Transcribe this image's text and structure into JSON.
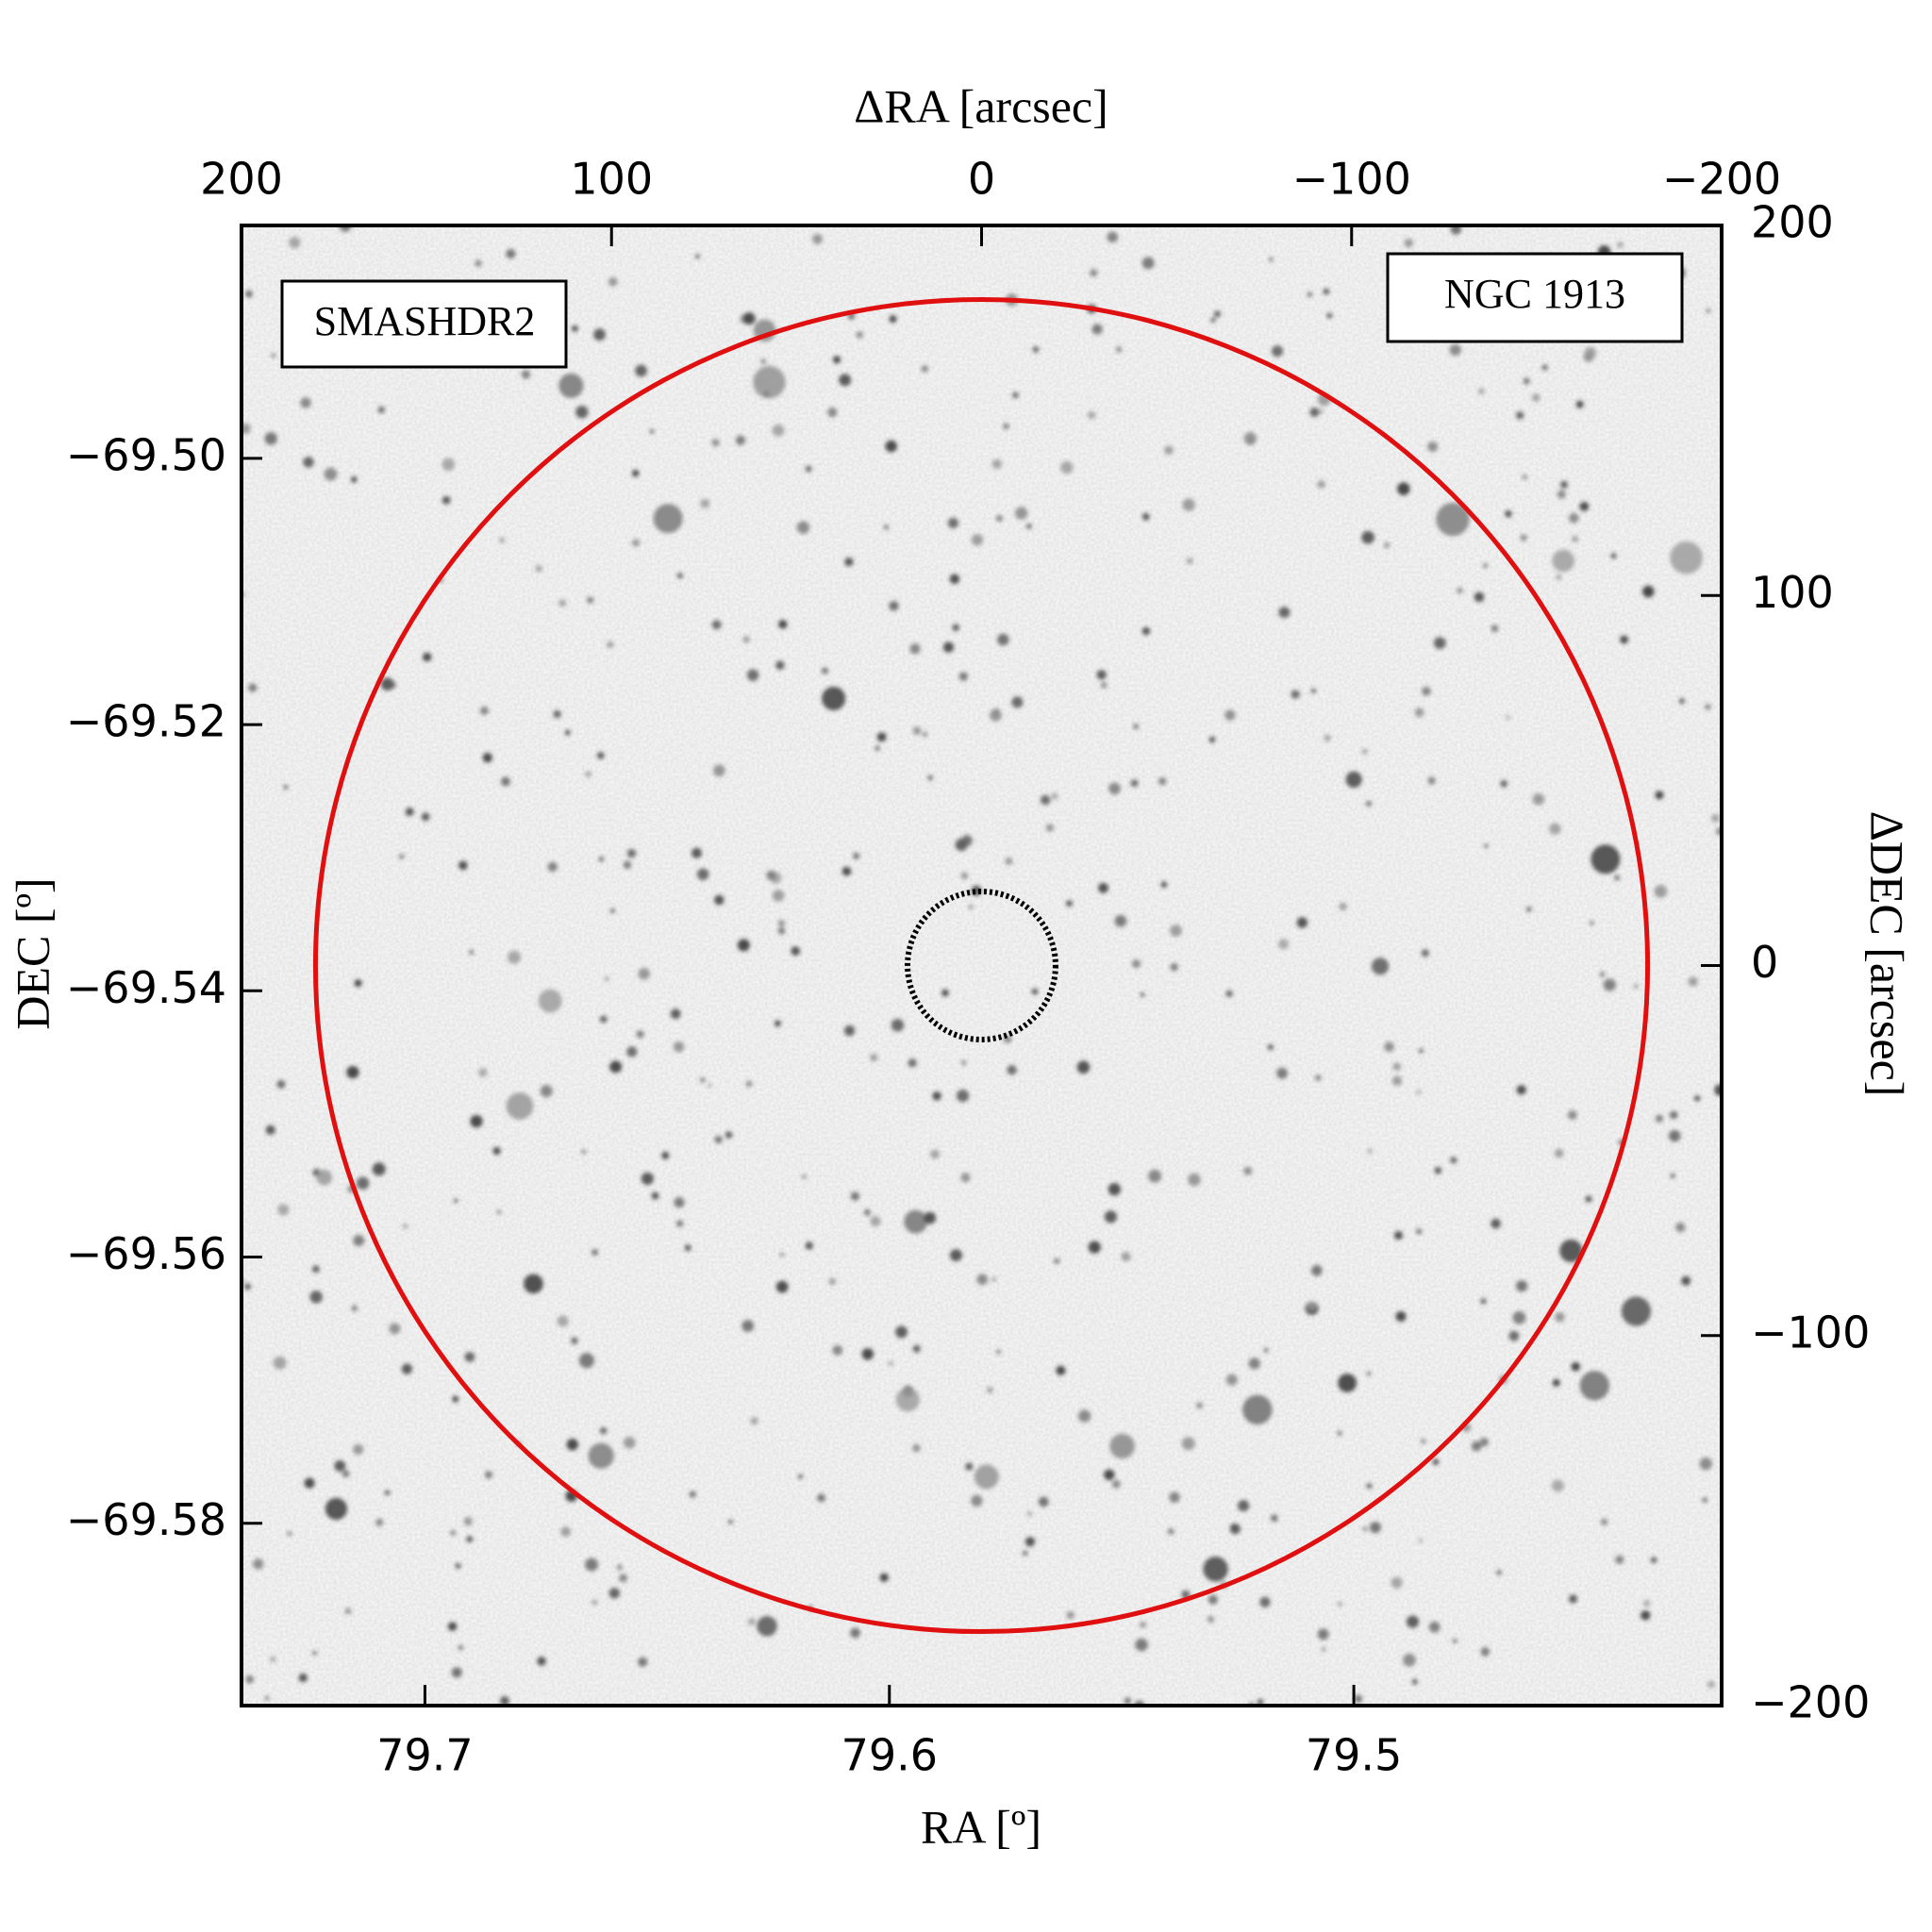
{
  "chart_data": {
    "type": "image",
    "xlabel": "RA [º]",
    "ylabel": "DEC [º]",
    "x2label": "ΔRA [arcsec]",
    "y2label": "ΔDEC [arcsec]",
    "xlim": [
      79.7395,
      79.4208
    ],
    "xticks": [
      79.7,
      79.6,
      79.5
    ],
    "ylim": [
      -69.4825,
      -69.5937
    ],
    "yticks": [
      {
        "value": -69.5,
        "label": "−69.50"
      },
      {
        "value": -69.52,
        "label": "−69.52"
      },
      {
        "value": -69.54,
        "label": "−69.54"
      },
      {
        "value": -69.56,
        "label": "−69.56"
      },
      {
        "value": -69.58,
        "label": "−69.58"
      }
    ],
    "x2lim": [
      200,
      -200
    ],
    "x2ticks": [
      200,
      100,
      0,
      {
        "value": -100,
        "label": "−100"
      },
      {
        "value": -200,
        "label": "−200"
      }
    ],
    "y2lim": [
      200,
      -200
    ],
    "y2ticks": [
      200,
      100,
      0,
      {
        "value": -100,
        "label": "−100"
      },
      {
        "value": -200,
        "label": "−200"
      }
    ],
    "circles": [
      {
        "x": 0,
        "y": 0,
        "radius": 180,
        "color": "#e01010",
        "style": "solid"
      },
      {
        "x": 0,
        "y": 0,
        "radius": 20,
        "color": "#000000",
        "style": "dotted"
      }
    ],
    "annotations": [
      {
        "text": "SMASHDR2",
        "color": "#e01010"
      },
      {
        "text": "NGC 1913",
        "color": "#000000"
      }
    ]
  }
}
